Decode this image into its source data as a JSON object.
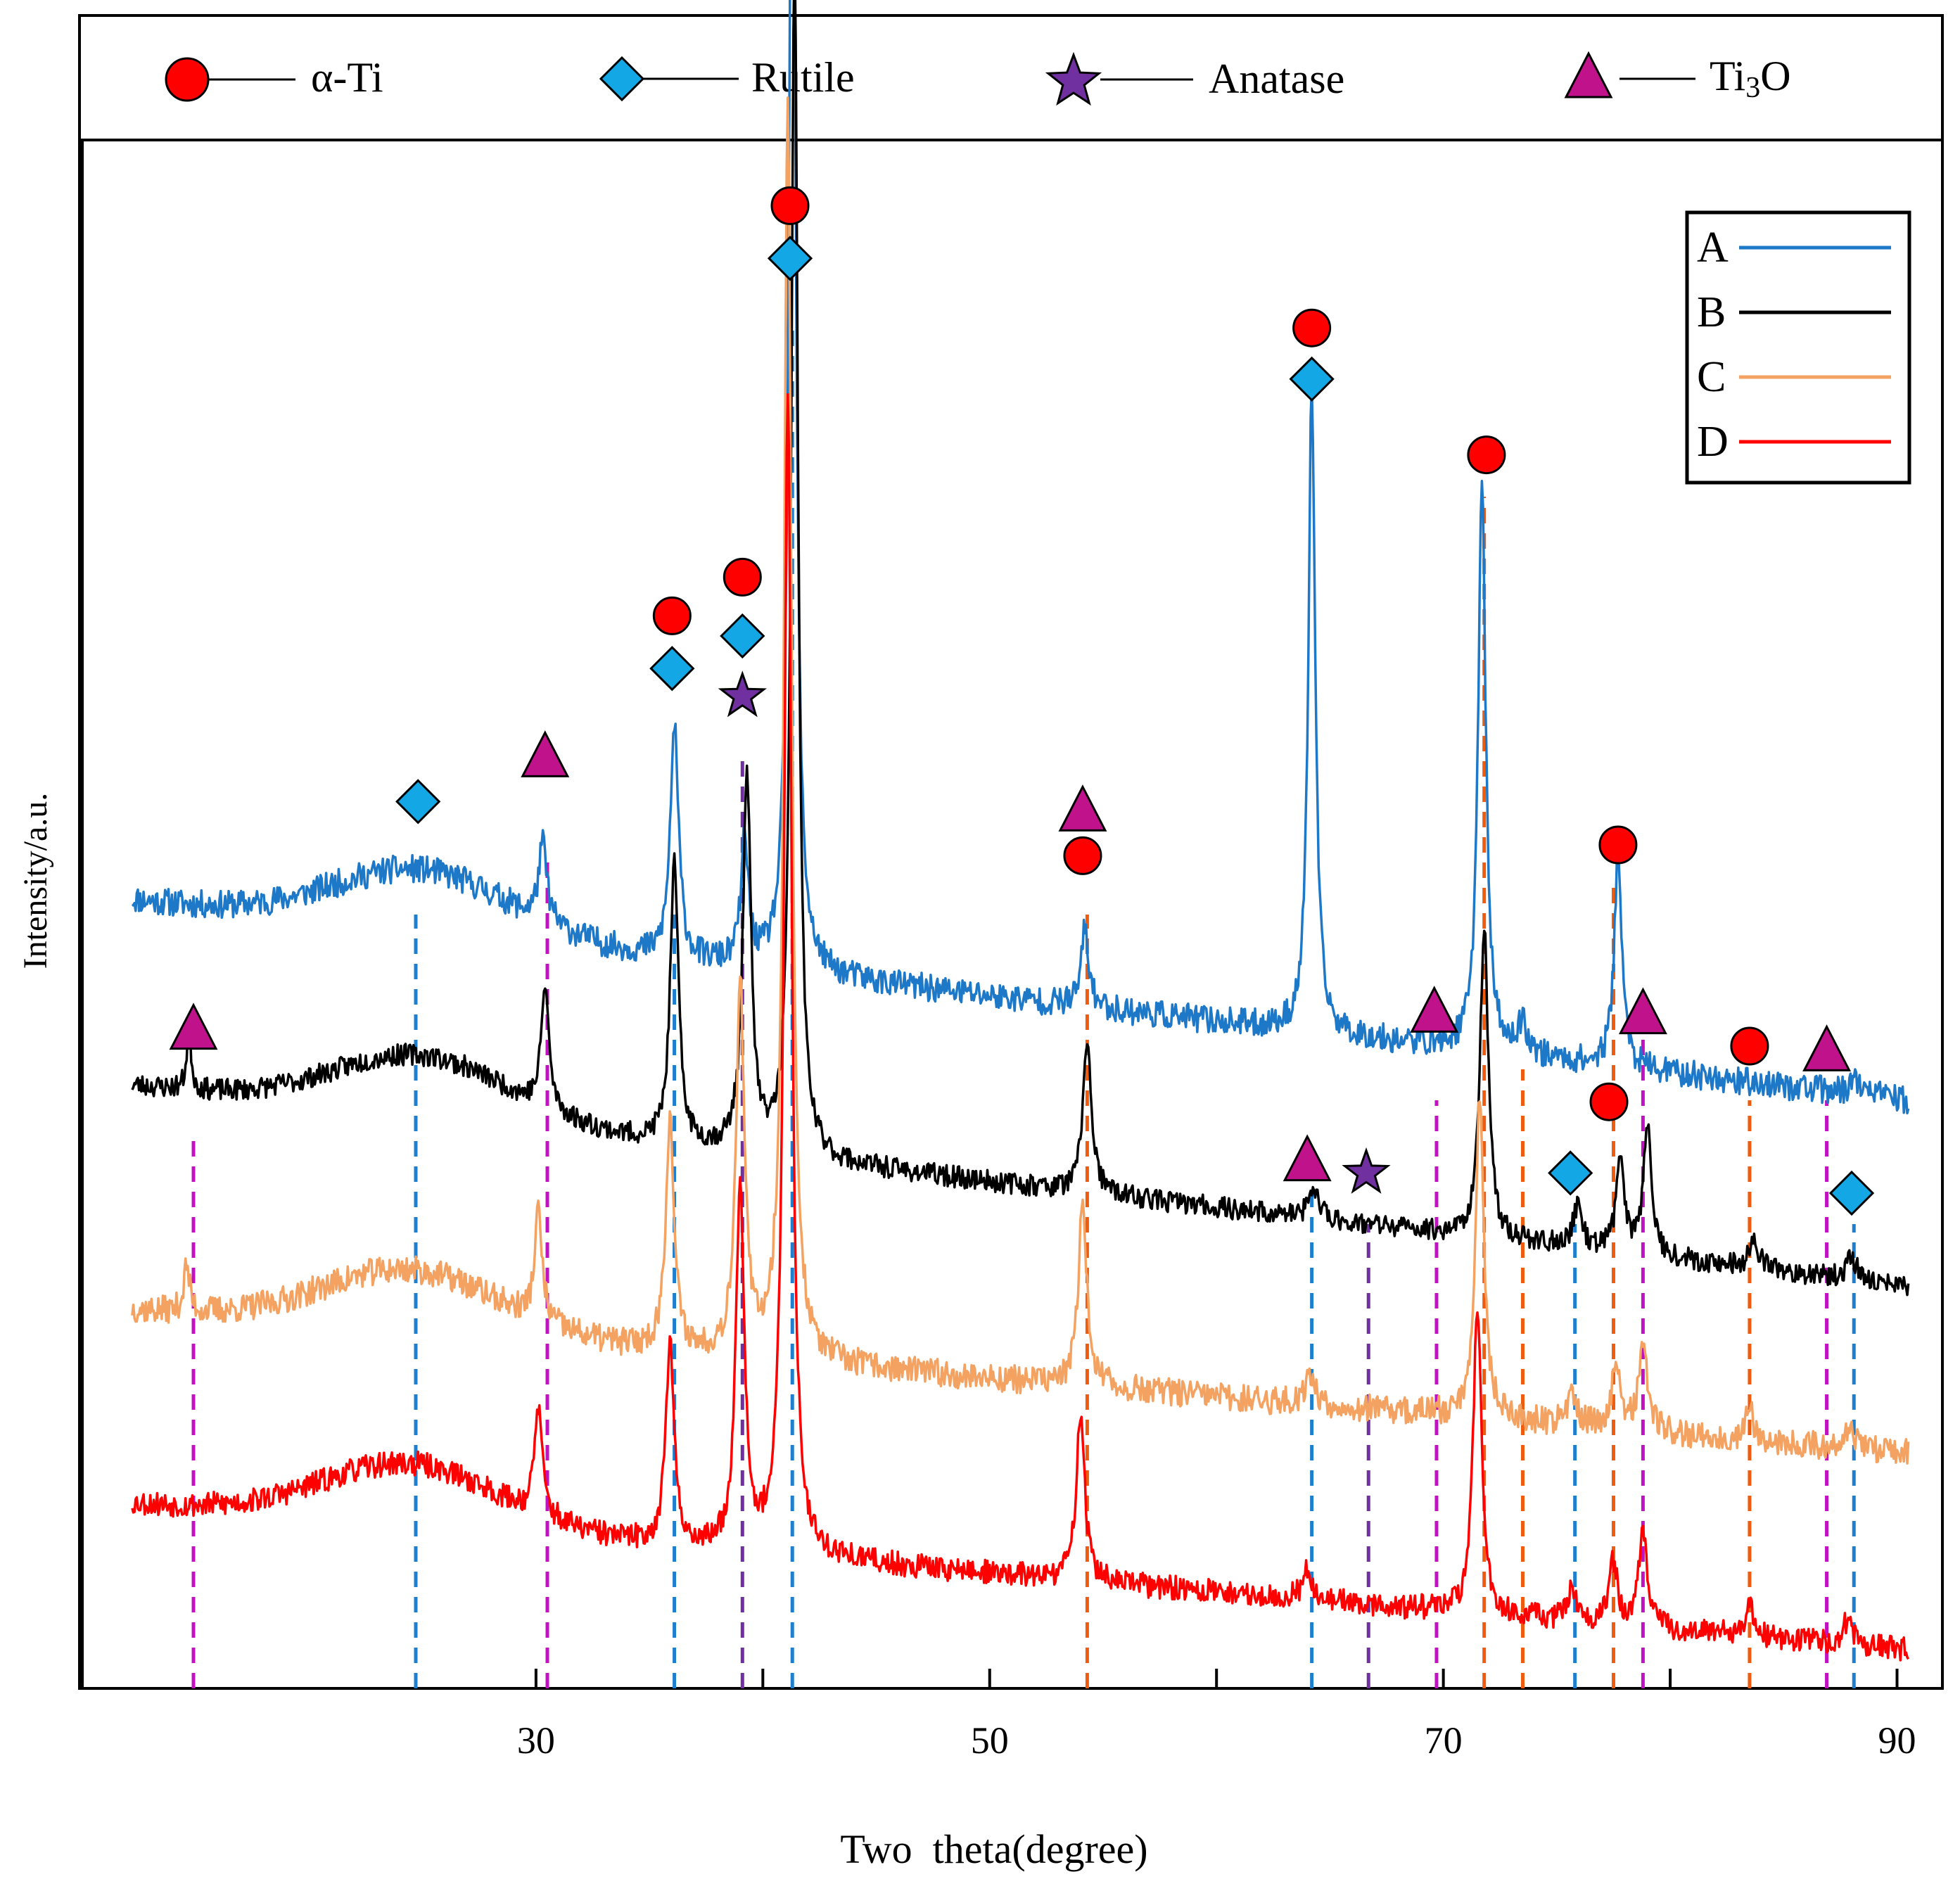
{
  "chart_data": {
    "type": "line",
    "xlabel": "Two  theta(degree)",
    "ylabel": "Intensity/a.u.",
    "xlim": [
      10,
      92
    ],
    "x_ticks": [
      30,
      40,
      50,
      60,
      70,
      80,
      90
    ],
    "x_tick_labels": [
      "30",
      "50",
      "70",
      "90"
    ],
    "x_tick_labeled": [
      30,
      50,
      70,
      90
    ],
    "ylim": [
      0,
      1
    ],
    "grid": false,
    "phase_legend": {
      "position": "top",
      "entries": [
        {
          "marker": "circle",
          "label_main": "α-Ti",
          "label_sub": "",
          "label_tail": ""
        },
        {
          "marker": "diamond",
          "label_main": "Rutile",
          "label_sub": "",
          "label_tail": ""
        },
        {
          "marker": "star",
          "label_main": "Anatase",
          "label_sub": "",
          "label_tail": ""
        },
        {
          "marker": "triangle",
          "label_main": "Ti",
          "label_sub": "3",
          "label_tail": "O"
        }
      ]
    },
    "series_legend": {
      "position": "top-right"
    },
    "colors": {
      "alpha_ti": "#ff0000",
      "rutile": "#14a7e6",
      "anatase": "#7030a0",
      "ti3o": "#c0128a",
      "dash_blue": "#1f7fcf",
      "dash_orange": "#ee5c10",
      "dash_magenta": "#c012c0",
      "dash_purple": "#7030a0"
    },
    "series": [
      {
        "name": "A",
        "color": "#1e78c8",
        "base_start": 0.51,
        "base_end": 0.38,
        "noise": 0.009,
        "seed": 11,
        "hump": {
          "center": 25,
          "width": 5.5,
          "height": 0.04
        },
        "peaks": [
          [
            30.3,
            0.05,
            0.22
          ],
          [
            36.1,
            0.15,
            0.22
          ],
          [
            39.2,
            0.08,
            0.2
          ],
          [
            41.3,
            0.84,
            0.18
          ],
          [
            54.2,
            0.05,
            0.2
          ],
          [
            64.2,
            0.42,
            0.18
          ],
          [
            71.7,
            0.37,
            0.2
          ],
          [
            77.7,
            0.14,
            0.2
          ],
          [
            73.5,
            0.02,
            0.25
          ],
          [
            88.2,
            0.01,
            0.3
          ]
        ]
      },
      {
        "name": "B",
        "color": "#000000",
        "base_start": 0.39,
        "base_end": 0.26,
        "noise": 0.007,
        "seed": 23,
        "hump": {
          "center": 25,
          "width": 5.5,
          "height": 0.04
        },
        "peaks": [
          [
            14.7,
            0.04,
            0.12
          ],
          [
            30.4,
            0.08,
            0.2
          ],
          [
            36.1,
            0.18,
            0.22
          ],
          [
            39.3,
            0.24,
            0.22
          ],
          [
            41.4,
            0.78,
            0.18
          ],
          [
            54.3,
            0.1,
            0.22
          ],
          [
            64.3,
            0.02,
            0.25
          ],
          [
            71.8,
            0.2,
            0.22
          ],
          [
            75.9,
            0.025,
            0.25
          ],
          [
            77.8,
            0.06,
            0.22
          ],
          [
            79.0,
            0.085,
            0.22
          ],
          [
            83.7,
            0.02,
            0.22
          ],
          [
            88.0,
            0.015,
            0.25
          ]
        ]
      },
      {
        "name": "C",
        "color": "#f4a261",
        "base_start": 0.245,
        "base_end": 0.152,
        "noise": 0.009,
        "seed": 37,
        "hump": {
          "center": 24.5,
          "width": 5.5,
          "height": 0.04
        },
        "peaks": [
          [
            14.6,
            0.03,
            0.15
          ],
          [
            30.1,
            0.07,
            0.2
          ],
          [
            35.9,
            0.15,
            0.22
          ],
          [
            39.0,
            0.24,
            0.22
          ],
          [
            41.1,
            0.81,
            0.2
          ],
          [
            54.1,
            0.12,
            0.22
          ],
          [
            64.1,
            0.02,
            0.25
          ],
          [
            71.6,
            0.21,
            0.22
          ],
          [
            75.7,
            0.02,
            0.25
          ],
          [
            77.6,
            0.04,
            0.22
          ],
          [
            78.8,
            0.06,
            0.22
          ],
          [
            83.5,
            0.02,
            0.22
          ],
          [
            87.9,
            0.015,
            0.25
          ]
        ]
      },
      {
        "name": "D",
        "color": "#ff0000",
        "base_start": 0.12,
        "base_end": 0.025,
        "noise": 0.008,
        "seed": 53,
        "hump": {
          "center": 24.5,
          "width": 5.5,
          "height": 0.04
        },
        "peaks": [
          [
            30.1,
            0.07,
            0.2
          ],
          [
            35.9,
            0.13,
            0.22
          ],
          [
            39.0,
            0.24,
            0.22
          ],
          [
            41.1,
            0.75,
            0.2
          ],
          [
            54.0,
            0.11,
            0.22
          ],
          [
            64.0,
            0.02,
            0.25
          ],
          [
            71.5,
            0.2,
            0.22
          ],
          [
            75.7,
            0.02,
            0.25
          ],
          [
            77.5,
            0.04,
            0.22
          ],
          [
            78.8,
            0.06,
            0.22
          ],
          [
            83.5,
            0.02,
            0.22
          ],
          [
            87.8,
            0.015,
            0.25
          ]
        ]
      }
    ],
    "reference_lines": [
      {
        "x": 14.9,
        "color": "#c012c0",
        "y_top": 0.36
      },
      {
        "x": 24.7,
        "color": "#1f7fcf",
        "y_top": 0.5
      },
      {
        "x": 30.5,
        "color": "#c012c0",
        "y_top": 0.54
      },
      {
        "x": 36.1,
        "color": "#1f7fcf",
        "y_top": 0.5
      },
      {
        "x": 39.1,
        "color": "#7030a0",
        "y_top": 0.6
      },
      {
        "x": 41.3,
        "color": "#1f7fcf",
        "y_top": 0.88
      },
      {
        "x": 54.3,
        "color": "#ee5c10",
        "y_top": 0.5
      },
      {
        "x": 64.2,
        "color": "#1f7fcf",
        "y_top": 0.32
      },
      {
        "x": 66.7,
        "color": "#7030a0",
        "y_top": 0.3
      },
      {
        "x": 69.7,
        "color": "#c012c0",
        "y_top": 0.38
      },
      {
        "x": 71.8,
        "color": "#ee5c10",
        "y_top": 0.77
      },
      {
        "x": 73.5,
        "color": "#ee5c10",
        "y_top": 0.4
      },
      {
        "x": 75.8,
        "color": "#1f7fcf",
        "y_top": 0.3
      },
      {
        "x": 77.5,
        "color": "#ee5c10",
        "y_top": 0.52
      },
      {
        "x": 78.8,
        "color": "#c012c0",
        "y_top": 0.42
      },
      {
        "x": 83.5,
        "color": "#ee5c10",
        "y_top": 0.38
      },
      {
        "x": 86.9,
        "color": "#c012c0",
        "y_top": 0.38
      },
      {
        "x": 88.1,
        "color": "#1f7fcf",
        "y_top": 0.3
      }
    ],
    "phase_markers": [
      {
        "x": 14.9,
        "y": 0.427,
        "marker": "triangle",
        "phase": "Ti3O"
      },
      {
        "x": 24.8,
        "y": 0.573,
        "marker": "diamond",
        "phase": "Rutile"
      },
      {
        "x": 30.4,
        "y": 0.603,
        "marker": "triangle",
        "phase": "Ti3O"
      },
      {
        "x": 36.0,
        "y": 0.659,
        "marker": "diamond",
        "phase": "Rutile"
      },
      {
        "x": 36.0,
        "y": 0.693,
        "marker": "circle",
        "phase": "α-Ti"
      },
      {
        "x": 39.1,
        "y": 0.641,
        "marker": "star",
        "phase": "Anatase"
      },
      {
        "x": 39.1,
        "y": 0.68,
        "marker": "diamond",
        "phase": "Rutile"
      },
      {
        "x": 39.1,
        "y": 0.718,
        "marker": "circle",
        "phase": "α-Ti"
      },
      {
        "x": 41.2,
        "y": 0.924,
        "marker": "diamond",
        "phase": "Rutile"
      },
      {
        "x": 41.2,
        "y": 0.958,
        "marker": "circle",
        "phase": "α-Ti"
      },
      {
        "x": 54.1,
        "y": 0.538,
        "marker": "circle",
        "phase": "α-Ti"
      },
      {
        "x": 54.1,
        "y": 0.568,
        "marker": "triangle",
        "phase": "Ti3O"
      },
      {
        "x": 64.2,
        "y": 0.846,
        "marker": "diamond",
        "phase": "Rutile"
      },
      {
        "x": 64.2,
        "y": 0.879,
        "marker": "circle",
        "phase": "α-Ti"
      },
      {
        "x": 64.0,
        "y": 0.342,
        "marker": "triangle",
        "phase": "Ti3O"
      },
      {
        "x": 66.6,
        "y": 0.333,
        "marker": "star",
        "phase": "Anatase"
      },
      {
        "x": 69.6,
        "y": 0.438,
        "marker": "triangle",
        "phase": "Ti3O"
      },
      {
        "x": 71.9,
        "y": 0.797,
        "marker": "circle",
        "phase": "α-Ti"
      },
      {
        "x": 75.6,
        "y": 0.333,
        "marker": "diamond",
        "phase": "Rutile"
      },
      {
        "x": 77.3,
        "y": 0.379,
        "marker": "circle",
        "phase": "α-Ti"
      },
      {
        "x": 77.7,
        "y": 0.545,
        "marker": "circle",
        "phase": "α-Ti"
      },
      {
        "x": 78.8,
        "y": 0.437,
        "marker": "triangle",
        "phase": "Ti3O"
      },
      {
        "x": 83.5,
        "y": 0.415,
        "marker": "circle",
        "phase": "α-Ti"
      },
      {
        "x": 86.9,
        "y": 0.413,
        "marker": "triangle",
        "phase": "Ti3O"
      },
      {
        "x": 88.0,
        "y": 0.32,
        "marker": "diamond",
        "phase": "Rutile"
      }
    ]
  }
}
